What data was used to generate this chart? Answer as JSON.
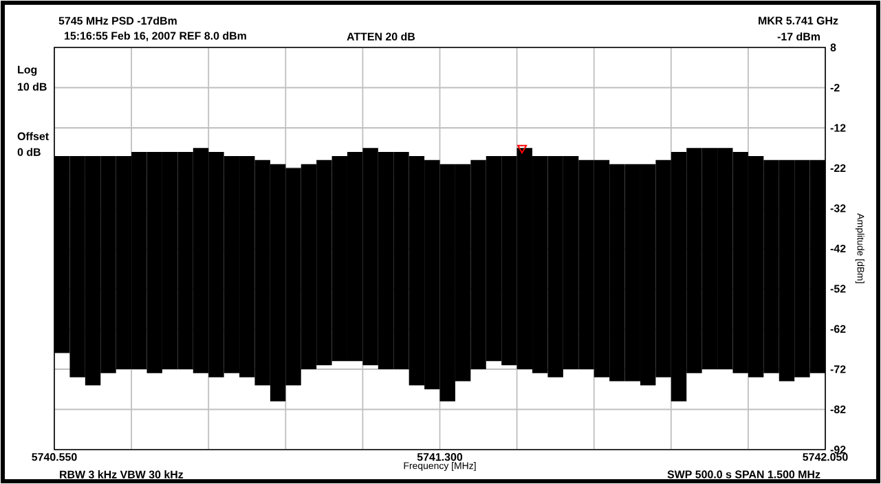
{
  "chart_data": {
    "type": "bar",
    "title": "5745 MHz PSD -17dBm",
    "xlabel": "Frequency [MHz]",
    "ylabel": "Amplitude [dBm]",
    "annotations": [
      "15:16:55 Feb 16, 2007  REF 8.0 dBm",
      "ATTEN 20 dB",
      "MKR  5.741 GHz",
      "-17 dBm",
      "Log",
      "10 dB",
      "Offset",
      "0 dB",
      "RBW 3 kHz  VBW 30 kHz",
      "SWP 500.0 s  SPAN 1.500 MHz"
    ],
    "xlim": [
      5740.55,
      5742.05
    ],
    "ylim": [
      -92,
      8
    ],
    "xticks": [
      {
        "value": 5740.55,
        "label": "5740.550"
      },
      {
        "value": 5740.7,
        "label": null
      },
      {
        "value": 5740.85,
        "label": null
      },
      {
        "value": 5741.0,
        "label": null
      },
      {
        "value": 5741.15,
        "label": null
      },
      {
        "value": 5741.3,
        "label": "5741.300"
      },
      {
        "value": 5741.45,
        "label": null
      },
      {
        "value": 5741.6,
        "label": null
      },
      {
        "value": 5741.75,
        "label": null
      },
      {
        "value": 5741.9,
        "label": null
      },
      {
        "value": 5742.05,
        "label": "5742.050"
      }
    ],
    "yticks": [
      8,
      -2,
      -12,
      -22,
      -32,
      -42,
      -52,
      -62,
      -72,
      -82,
      -92
    ],
    "grid": true,
    "series": [
      {
        "color": "#000000",
        "x": [
          5740.565,
          5740.595,
          5740.625,
          5740.655,
          5740.685,
          5740.715,
          5740.745,
          5740.775,
          5740.805,
          5740.835,
          5740.865,
          5740.895,
          5740.925,
          5740.955,
          5740.985,
          5741.015,
          5741.045,
          5741.075,
          5741.105,
          5741.135,
          5741.165,
          5741.195,
          5741.225,
          5741.255,
          5741.285,
          5741.315,
          5741.345,
          5741.375,
          5741.405,
          5741.435,
          5741.465,
          5741.495,
          5741.525,
          5741.555,
          5741.585,
          5741.615,
          5741.645,
          5741.675,
          5741.705,
          5741.735,
          5741.765,
          5741.795,
          5741.825,
          5741.855,
          5741.885,
          5741.915,
          5741.945,
          5741.975,
          5742.005,
          5742.035
        ],
        "base": [
          -68,
          -74,
          -76,
          -73,
          -72,
          -72,
          -73,
          -72,
          -72,
          -73,
          -74,
          -73,
          -74,
          -76,
          -80,
          -76,
          -72,
          -71,
          -70,
          -70,
          -71,
          -72,
          -72,
          -76,
          -77,
          -80,
          -75,
          -72,
          -70,
          -71,
          -72,
          -73,
          -74,
          -72,
          -72,
          -74,
          -75,
          -75,
          -76,
          -74,
          -80,
          -73,
          -72,
          -72,
          -73,
          -74,
          -73,
          -75,
          -74,
          -73
        ],
        "values": [
          49,
          55,
          57,
          54,
          53,
          54,
          55,
          54,
          54,
          56,
          56,
          54,
          55,
          56,
          59,
          54,
          51,
          51,
          51,
          52,
          54,
          54,
          54,
          57,
          57,
          59,
          54,
          52,
          51,
          52,
          55,
          54,
          55,
          53,
          52,
          54,
          54,
          54,
          55,
          54,
          62,
          56,
          55,
          55,
          55,
          55,
          53,
          55,
          54,
          53
        ]
      },
      {
        "type": "scatter",
        "color": "#ff0000",
        "marker": "triangle",
        "x": [
          5741.46
        ],
        "values": [
          -17
        ]
      }
    ]
  }
}
